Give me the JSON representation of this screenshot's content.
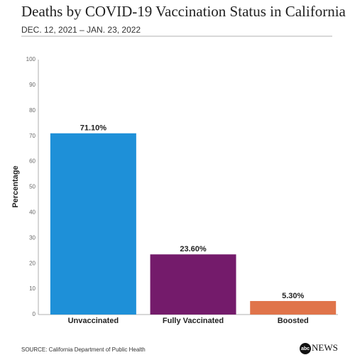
{
  "chart_data": {
    "type": "bar",
    "title": "Deaths by COVID-19 Vaccination Status in California",
    "subtitle": "DEC. 12, 2021 – JAN. 23, 2022",
    "y_label": "Percentage",
    "categories": [
      "Unvaccinated",
      "Fully Vaccinated",
      "Boosted"
    ],
    "values": [
      71.1,
      23.6,
      5.3
    ],
    "value_labels": [
      "71.10%",
      "23.60%",
      "5.30%"
    ],
    "colors": [
      "#1e90d8",
      "#741b6b",
      "#e0744a"
    ],
    "ylim": [
      0,
      100
    ],
    "yticks": [
      0,
      10,
      20,
      30,
      40,
      50,
      60,
      70,
      80,
      90,
      100
    ],
    "grid": false,
    "source": "SOURCE: California Department of Public Health",
    "logo": {
      "mark": "abc",
      "text": "NEWS"
    }
  }
}
